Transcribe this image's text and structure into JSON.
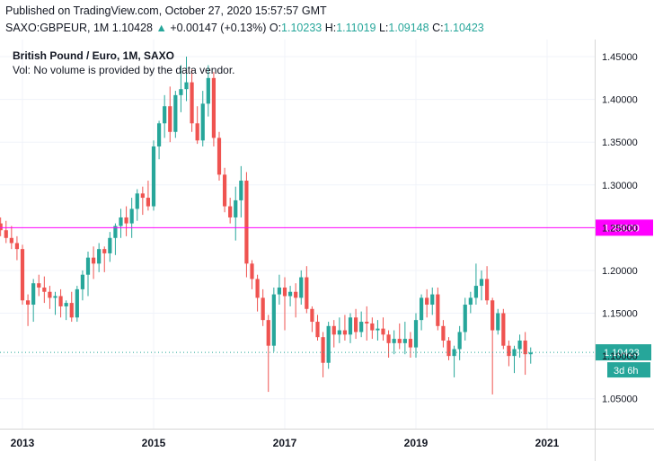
{
  "header": {
    "published": "Published on TradingView.com, October 27, 2020 15:57:57 GMT",
    "symbol": "SAXO:GBPEUR, 1M",
    "last": "1.10428",
    "arrow": "▲",
    "change": "+0.00147 (+0.13%)",
    "o_label": "O:",
    "o_value": "1.10233",
    "h_label": "H:",
    "h_value": "1.11019",
    "l_label": "L:",
    "l_value": "1.09148",
    "c_label": "C:",
    "c_value": "1.10423"
  },
  "legend": {
    "title": "British Pound / Euro, 1M, SAXO",
    "volume_note": "Vol: No volume is provided by the data vendor."
  },
  "colors": {
    "up": "#26a69a",
    "down": "#ef5350",
    "hline": "#ff00ff",
    "price_line": "#26a69a"
  },
  "chart_data": {
    "type": "candlestick",
    "title": "British Pound / Euro, 1M, SAXO",
    "interval": "1M",
    "ylim": [
      1.015,
      1.47
    ],
    "y_ticks": [
      "1.45000",
      "1.40000",
      "1.35000",
      "1.30000",
      "1.25000",
      "1.20000",
      "1.15000",
      "1.10000",
      "1.05000"
    ],
    "x_ticks": [
      "2013",
      "2015",
      "2017",
      "2019",
      "2021"
    ],
    "x_tick_years": [
      2013,
      2015,
      2017,
      2019,
      2021
    ],
    "horizontal_line": {
      "value": 1.25,
      "label": "1.25000"
    },
    "last_price": {
      "value": 1.10423,
      "label": "1.10423",
      "countdown": "3d 6h"
    },
    "candles": [
      {
        "t": "2012-09",
        "o": 1.255,
        "h": 1.262,
        "l": 1.24,
        "c": 1.247
      },
      {
        "t": "2012-10",
        "o": 1.247,
        "h": 1.258,
        "l": 1.232,
        "c": 1.238
      },
      {
        "t": "2012-11",
        "o": 1.238,
        "h": 1.252,
        "l": 1.225,
        "c": 1.232
      },
      {
        "t": "2012-12",
        "o": 1.232,
        "h": 1.24,
        "l": 1.212,
        "c": 1.225
      },
      {
        "t": "2013-01",
        "o": 1.225,
        "h": 1.23,
        "l": 1.16,
        "c": 1.165
      },
      {
        "t": "2013-02",
        "o": 1.165,
        "h": 1.172,
        "l": 1.135,
        "c": 1.16
      },
      {
        "t": "2013-03",
        "o": 1.16,
        "h": 1.19,
        "l": 1.14,
        "c": 1.185
      },
      {
        "t": "2013-04",
        "o": 1.185,
        "h": 1.195,
        "l": 1.17,
        "c": 1.18
      },
      {
        "t": "2013-05",
        "o": 1.18,
        "h": 1.193,
        "l": 1.162,
        "c": 1.175
      },
      {
        "t": "2013-06",
        "o": 1.175,
        "h": 1.182,
        "l": 1.155,
        "c": 1.168
      },
      {
        "t": "2013-07",
        "o": 1.168,
        "h": 1.175,
        "l": 1.148,
        "c": 1.17
      },
      {
        "t": "2013-08",
        "o": 1.17,
        "h": 1.178,
        "l": 1.145,
        "c": 1.158
      },
      {
        "t": "2013-09",
        "o": 1.158,
        "h": 1.165,
        "l": 1.142,
        "c": 1.162
      },
      {
        "t": "2013-10",
        "o": 1.162,
        "h": 1.175,
        "l": 1.14,
        "c": 1.145
      },
      {
        "t": "2013-11",
        "o": 1.145,
        "h": 1.182,
        "l": 1.14,
        "c": 1.178
      },
      {
        "t": "2013-12",
        "o": 1.178,
        "h": 1.2,
        "l": 1.165,
        "c": 1.195
      },
      {
        "t": "2014-01",
        "o": 1.195,
        "h": 1.222,
        "l": 1.17,
        "c": 1.215
      },
      {
        "t": "2014-02",
        "o": 1.215,
        "h": 1.228,
        "l": 1.19,
        "c": 1.208
      },
      {
        "t": "2014-03",
        "o": 1.208,
        "h": 1.232,
        "l": 1.198,
        "c": 1.225
      },
      {
        "t": "2014-04",
        "o": 1.225,
        "h": 1.228,
        "l": 1.198,
        "c": 1.22
      },
      {
        "t": "2014-05",
        "o": 1.22,
        "h": 1.245,
        "l": 1.21,
        "c": 1.238
      },
      {
        "t": "2014-06",
        "o": 1.238,
        "h": 1.255,
        "l": 1.218,
        "c": 1.252
      },
      {
        "t": "2014-07",
        "o": 1.252,
        "h": 1.272,
        "l": 1.238,
        "c": 1.262
      },
      {
        "t": "2014-08",
        "o": 1.262,
        "h": 1.275,
        "l": 1.24,
        "c": 1.255
      },
      {
        "t": "2014-09",
        "o": 1.255,
        "h": 1.285,
        "l": 1.238,
        "c": 1.272
      },
      {
        "t": "2014-10",
        "o": 1.272,
        "h": 1.295,
        "l": 1.258,
        "c": 1.29
      },
      {
        "t": "2014-11",
        "o": 1.29,
        "h": 1.298,
        "l": 1.265,
        "c": 1.285
      },
      {
        "t": "2014-12",
        "o": 1.285,
        "h": 1.305,
        "l": 1.27,
        "c": 1.275
      },
      {
        "t": "2015-01",
        "o": 1.275,
        "h": 1.352,
        "l": 1.27,
        "c": 1.345
      },
      {
        "t": "2015-02",
        "o": 1.345,
        "h": 1.375,
        "l": 1.33,
        "c": 1.372
      },
      {
        "t": "2015-03",
        "o": 1.372,
        "h": 1.405,
        "l": 1.355,
        "c": 1.392
      },
      {
        "t": "2015-04",
        "o": 1.392,
        "h": 1.415,
        "l": 1.35,
        "c": 1.362
      },
      {
        "t": "2015-05",
        "o": 1.362,
        "h": 1.41,
        "l": 1.355,
        "c": 1.405
      },
      {
        "t": "2015-06",
        "o": 1.405,
        "h": 1.44,
        "l": 1.385,
        "c": 1.412
      },
      {
        "t": "2015-07",
        "o": 1.412,
        "h": 1.45,
        "l": 1.398,
        "c": 1.42
      },
      {
        "t": "2015-08",
        "o": 1.42,
        "h": 1.435,
        "l": 1.362,
        "c": 1.372
      },
      {
        "t": "2015-09",
        "o": 1.372,
        "h": 1.392,
        "l": 1.348,
        "c": 1.352
      },
      {
        "t": "2015-10",
        "o": 1.352,
        "h": 1.41,
        "l": 1.345,
        "c": 1.395
      },
      {
        "t": "2015-11",
        "o": 1.395,
        "h": 1.44,
        "l": 1.38,
        "c": 1.425
      },
      {
        "t": "2015-12",
        "o": 1.425,
        "h": 1.432,
        "l": 1.345,
        "c": 1.355
      },
      {
        "t": "2016-01",
        "o": 1.355,
        "h": 1.362,
        "l": 1.305,
        "c": 1.312
      },
      {
        "t": "2016-02",
        "o": 1.312,
        "h": 1.32,
        "l": 1.268,
        "c": 1.275
      },
      {
        "t": "2016-03",
        "o": 1.275,
        "h": 1.285,
        "l": 1.255,
        "c": 1.262
      },
      {
        "t": "2016-04",
        "o": 1.262,
        "h": 1.298,
        "l": 1.235,
        "c": 1.282
      },
      {
        "t": "2016-05",
        "o": 1.282,
        "h": 1.322,
        "l": 1.262,
        "c": 1.305
      },
      {
        "t": "2016-06",
        "o": 1.305,
        "h": 1.315,
        "l": 1.192,
        "c": 1.208
      },
      {
        "t": "2016-07",
        "o": 1.208,
        "h": 1.212,
        "l": 1.178,
        "c": 1.19
      },
      {
        "t": "2016-08",
        "o": 1.19,
        "h": 1.195,
        "l": 1.152,
        "c": 1.168
      },
      {
        "t": "2016-09",
        "o": 1.168,
        "h": 1.178,
        "l": 1.135,
        "c": 1.142
      },
      {
        "t": "2016-10",
        "o": 1.142,
        "h": 1.148,
        "l": 1.058,
        "c": 1.112
      },
      {
        "t": "2016-11",
        "o": 1.112,
        "h": 1.18,
        "l": 1.105,
        "c": 1.172
      },
      {
        "t": "2016-12",
        "o": 1.172,
        "h": 1.195,
        "l": 1.16,
        "c": 1.18
      },
      {
        "t": "2017-01",
        "o": 1.18,
        "h": 1.192,
        "l": 1.13,
        "c": 1.17
      },
      {
        "t": "2017-02",
        "o": 1.17,
        "h": 1.182,
        "l": 1.158,
        "c": 1.175
      },
      {
        "t": "2017-03",
        "o": 1.175,
        "h": 1.185,
        "l": 1.145,
        "c": 1.168
      },
      {
        "t": "2017-04",
        "o": 1.168,
        "h": 1.2,
        "l": 1.16,
        "c": 1.192
      },
      {
        "t": "2017-05",
        "o": 1.192,
        "h": 1.205,
        "l": 1.15,
        "c": 1.155
      },
      {
        "t": "2017-06",
        "o": 1.155,
        "h": 1.158,
        "l": 1.128,
        "c": 1.14
      },
      {
        "t": "2017-07",
        "o": 1.14,
        "h": 1.148,
        "l": 1.118,
        "c": 1.122
      },
      {
        "t": "2017-08",
        "o": 1.122,
        "h": 1.128,
        "l": 1.075,
        "c": 1.092
      },
      {
        "t": "2017-09",
        "o": 1.092,
        "h": 1.14,
        "l": 1.085,
        "c": 1.135
      },
      {
        "t": "2017-10",
        "o": 1.135,
        "h": 1.142,
        "l": 1.11,
        "c": 1.125
      },
      {
        "t": "2017-11",
        "o": 1.125,
        "h": 1.145,
        "l": 1.115,
        "c": 1.13
      },
      {
        "t": "2017-12",
        "o": 1.13,
        "h": 1.148,
        "l": 1.118,
        "c": 1.125
      },
      {
        "t": "2018-01",
        "o": 1.125,
        "h": 1.15,
        "l": 1.115,
        "c": 1.145
      },
      {
        "t": "2018-02",
        "o": 1.145,
        "h": 1.155,
        "l": 1.12,
        "c": 1.128
      },
      {
        "t": "2018-03",
        "o": 1.128,
        "h": 1.152,
        "l": 1.122,
        "c": 1.14
      },
      {
        "t": "2018-04",
        "o": 1.14,
        "h": 1.158,
        "l": 1.118,
        "c": 1.138
      },
      {
        "t": "2018-05",
        "o": 1.138,
        "h": 1.145,
        "l": 1.12,
        "c": 1.13
      },
      {
        "t": "2018-06",
        "o": 1.13,
        "h": 1.142,
        "l": 1.118,
        "c": 1.132
      },
      {
        "t": "2018-07",
        "o": 1.132,
        "h": 1.145,
        "l": 1.118,
        "c": 1.125
      },
      {
        "t": "2018-08",
        "o": 1.125,
        "h": 1.13,
        "l": 1.098,
        "c": 1.115
      },
      {
        "t": "2018-09",
        "o": 1.115,
        "h": 1.13,
        "l": 1.102,
        "c": 1.12
      },
      {
        "t": "2018-10",
        "o": 1.12,
        "h": 1.138,
        "l": 1.108,
        "c": 1.115
      },
      {
        "t": "2018-11",
        "o": 1.115,
        "h": 1.14,
        "l": 1.102,
        "c": 1.12
      },
      {
        "t": "2018-12",
        "o": 1.12,
        "h": 1.128,
        "l": 1.098,
        "c": 1.11
      },
      {
        "t": "2019-01",
        "o": 1.11,
        "h": 1.15,
        "l": 1.098,
        "c": 1.142
      },
      {
        "t": "2019-02",
        "o": 1.142,
        "h": 1.172,
        "l": 1.13,
        "c": 1.168
      },
      {
        "t": "2019-03",
        "o": 1.168,
        "h": 1.178,
        "l": 1.145,
        "c": 1.16
      },
      {
        "t": "2019-04",
        "o": 1.16,
        "h": 1.18,
        "l": 1.148,
        "c": 1.172
      },
      {
        "t": "2019-05",
        "o": 1.172,
        "h": 1.18,
        "l": 1.13,
        "c": 1.135
      },
      {
        "t": "2019-06",
        "o": 1.135,
        "h": 1.142,
        "l": 1.11,
        "c": 1.118
      },
      {
        "t": "2019-07",
        "o": 1.118,
        "h": 1.122,
        "l": 1.095,
        "c": 1.1
      },
      {
        "t": "2019-08",
        "o": 1.1,
        "h": 1.112,
        "l": 1.075,
        "c": 1.108
      },
      {
        "t": "2019-09",
        "o": 1.108,
        "h": 1.135,
        "l": 1.095,
        "c": 1.128
      },
      {
        "t": "2019-10",
        "o": 1.128,
        "h": 1.168,
        "l": 1.118,
        "c": 1.16
      },
      {
        "t": "2019-11",
        "o": 1.16,
        "h": 1.175,
        "l": 1.15,
        "c": 1.168
      },
      {
        "t": "2019-12",
        "o": 1.168,
        "h": 1.208,
        "l": 1.16,
        "c": 1.182
      },
      {
        "t": "2020-01",
        "o": 1.182,
        "h": 1.2,
        "l": 1.165,
        "c": 1.19
      },
      {
        "t": "2020-02",
        "o": 1.19,
        "h": 1.205,
        "l": 1.16,
        "c": 1.165
      },
      {
        "t": "2020-03",
        "o": 1.165,
        "h": 1.168,
        "l": 1.055,
        "c": 1.13
      },
      {
        "t": "2020-04",
        "o": 1.13,
        "h": 1.155,
        "l": 1.125,
        "c": 1.15
      },
      {
        "t": "2020-05",
        "o": 1.15,
        "h": 1.155,
        "l": 1.108,
        "c": 1.112
      },
      {
        "t": "2020-06",
        "o": 1.112,
        "h": 1.118,
        "l": 1.088,
        "c": 1.1
      },
      {
        "t": "2020-07",
        "o": 1.1,
        "h": 1.112,
        "l": 1.08,
        "c": 1.108
      },
      {
        "t": "2020-08",
        "o": 1.108,
        "h": 1.125,
        "l": 1.098,
        "c": 1.118
      },
      {
        "t": "2020-09",
        "o": 1.118,
        "h": 1.128,
        "l": 1.078,
        "c": 1.102
      },
      {
        "t": "2020-10",
        "o": 1.102,
        "h": 1.11,
        "l": 1.091,
        "c": 1.104
      }
    ]
  }
}
